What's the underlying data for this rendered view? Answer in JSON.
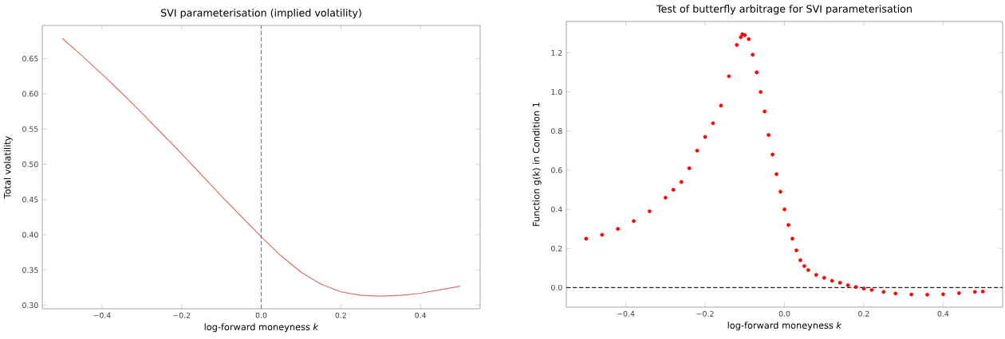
{
  "chart_data": [
    {
      "type": "line",
      "title": "SVI parameterisation (implied volatility)",
      "xlabel": "log-forward moneyness *k*",
      "ylabel": "Total volatility",
      "x": [
        -0.5,
        -0.45,
        -0.4,
        -0.35,
        -0.3,
        -0.25,
        -0.2,
        -0.15,
        -0.1,
        -0.05,
        0,
        0.05,
        0.1,
        0.15,
        0.2,
        0.25,
        0.3,
        0.35,
        0.4,
        0.45,
        0.5
      ],
      "values": [
        0.679,
        0.654,
        0.628,
        0.601,
        0.573,
        0.544,
        0.515,
        0.485,
        0.455,
        0.426,
        0.397,
        0.37,
        0.347,
        0.33,
        0.319,
        0.314,
        0.313,
        0.314,
        0.317,
        0.322,
        0.327
      ],
      "color": "#d9706b",
      "xlim": [
        -0.55,
        0.55
      ],
      "ylim": [
        0.295,
        0.697
      ],
      "xticks": [
        {
          "value": -0.4,
          "label": "−0.4"
        },
        {
          "value": -0.2,
          "label": "−0.2"
        },
        {
          "value": 0,
          "label": "0.0"
        },
        {
          "value": 0.2,
          "label": "0.2"
        },
        {
          "value": 0.4,
          "label": "0.4"
        }
      ],
      "yticks": [
        {
          "value": 0.3,
          "label": "0.30"
        },
        {
          "value": 0.35,
          "label": "0.35"
        },
        {
          "value": 0.4,
          "label": "0.40"
        },
        {
          "value": 0.45,
          "label": "0.45"
        },
        {
          "value": 0.5,
          "label": "0.50"
        },
        {
          "value": 0.55,
          "label": "0.55"
        },
        {
          "value": 0.6,
          "label": "0.60"
        },
        {
          "value": 0.65,
          "label": "0.65"
        }
      ],
      "ref_lines": [
        {
          "axis": "x",
          "value": 0,
          "color": "#3b8fd0",
          "line_style": "dashed"
        }
      ]
    },
    {
      "type": "scatter",
      "title": "Test of butterfly arbitrage for SVI parameterisation",
      "xlabel": "log-forward moneyness *k*",
      "ylabel": "Function g(k) in Condition 1",
      "x": [
        -0.5,
        -0.46,
        -0.42,
        -0.38,
        -0.34,
        -0.3,
        -0.28,
        -0.26,
        -0.24,
        -0.22,
        -0.2,
        -0.18,
        -0.16,
        -0.14,
        -0.12,
        -0.11,
        -0.106,
        -0.1,
        -0.09,
        -0.08,
        -0.07,
        -0.06,
        -0.05,
        -0.04,
        -0.03,
        -0.02,
        -0.01,
        0,
        0.01,
        0.02,
        0.03,
        0.04,
        0.05,
        0.06,
        0.08,
        0.1,
        0.12,
        0.14,
        0.16,
        0.18,
        0.2,
        0.22,
        0.25,
        0.28,
        0.32,
        0.36,
        0.4,
        0.44,
        0.48,
        0.5
      ],
      "values": [
        0.25,
        0.27,
        0.3,
        0.34,
        0.39,
        0.46,
        0.5,
        0.54,
        0.61,
        0.7,
        0.77,
        0.84,
        0.93,
        1.08,
        1.24,
        1.28,
        1.295,
        1.29,
        1.27,
        1.19,
        1.1,
        1.0,
        0.9,
        0.78,
        0.68,
        0.58,
        0.49,
        0.4,
        0.32,
        0.25,
        0.19,
        0.14,
        0.11,
        0.09,
        0.065,
        0.05,
        0.035,
        0.025,
        0.012,
        0.003,
        -0.005,
        -0.012,
        -0.022,
        -0.03,
        -0.035,
        -0.036,
        -0.034,
        -0.028,
        -0.022,
        -0.02
      ],
      "color": "#ff0000",
      "xlim": [
        -0.55,
        0.55
      ],
      "ylim": [
        -0.1,
        1.36
      ],
      "xticks": [
        {
          "value": -0.4,
          "label": "−0.4"
        },
        {
          "value": -0.2,
          "label": "−0.2"
        },
        {
          "value": 0,
          "label": "0.0"
        },
        {
          "value": 0.2,
          "label": "0.2"
        },
        {
          "value": 0.4,
          "label": "0.4"
        }
      ],
      "yticks": [
        {
          "value": 0,
          "label": "0.0"
        },
        {
          "value": 0.2,
          "label": "0.2"
        },
        {
          "value": 0.4,
          "label": "0.4"
        },
        {
          "value": 0.6,
          "label": "0.6"
        },
        {
          "value": 0.8,
          "label": "0.8"
        },
        {
          "value": 1.0,
          "label": "1.0"
        },
        {
          "value": 1.2,
          "label": "1.2"
        }
      ],
      "ref_lines": [
        {
          "axis": "y",
          "value": 0,
          "color": "#222222",
          "line_style": "dashed"
        }
      ]
    }
  ]
}
